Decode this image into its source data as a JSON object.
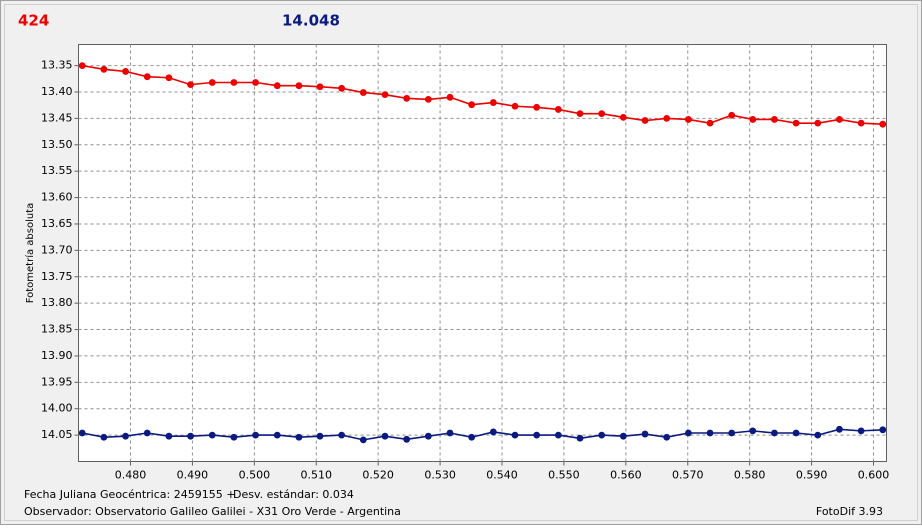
{
  "chart_data": {
    "type": "line",
    "y_label": "Fotometría absoluta",
    "footer": {
      "date_label": "Fecha Juliana Geocéntrica: 2459155 +",
      "std_label": "Desv. estándar: 0.034",
      "observer": "Observador: Observatorio Galileo Galilei - X31 Oro Verde - Argentina",
      "software": "FotoDif 3.93"
    },
    "x": [
      0.4722,
      0.4757,
      0.4792,
      0.4827,
      0.4862,
      0.4897,
      0.4932,
      0.4967,
      0.5002,
      0.5037,
      0.5072,
      0.5106,
      0.5141,
      0.5176,
      0.5211,
      0.5246,
      0.5281,
      0.5316,
      0.5351,
      0.5386,
      0.5421,
      0.5456,
      0.5491,
      0.5526,
      0.5561,
      0.5596,
      0.5631,
      0.5666,
      0.5701,
      0.5736,
      0.5771,
      0.5805,
      0.584,
      0.5875,
      0.591,
      0.5945,
      0.598,
      0.6015
    ],
    "series": [
      {
        "name": "424",
        "color": "#ee0000",
        "values": [
          13.35,
          13.357,
          13.361,
          13.371,
          13.373,
          13.386,
          13.382,
          13.382,
          13.382,
          13.388,
          13.388,
          13.39,
          13.393,
          13.401,
          13.405,
          13.412,
          13.414,
          13.41,
          13.424,
          13.42,
          13.427,
          13.429,
          13.433,
          13.441,
          13.441,
          13.448,
          13.454,
          13.45,
          13.452,
          13.459,
          13.444,
          13.452,
          13.452,
          13.459,
          13.459,
          13.452,
          13.459,
          13.461
        ]
      },
      {
        "name": "14.048",
        "color": "#0a1a80",
        "values": [
          14.046,
          14.054,
          14.052,
          14.046,
          14.052,
          14.052,
          14.05,
          14.054,
          14.05,
          14.05,
          14.054,
          14.052,
          14.05,
          14.059,
          14.052,
          14.058,
          14.052,
          14.046,
          14.054,
          14.044,
          14.05,
          14.05,
          14.05,
          14.056,
          14.05,
          14.052,
          14.048,
          14.054,
          14.046,
          14.046,
          14.046,
          14.042,
          14.046,
          14.046,
          14.05,
          14.039,
          14.042,
          14.04
        ]
      }
    ],
    "xlim": [
      0.4716,
      0.6021
    ],
    "xticks": [
      {
        "value": 0.48,
        "label": "0.480"
      },
      {
        "value": 0.49,
        "label": "0.490"
      },
      {
        "value": 0.5,
        "label": "0.500"
      },
      {
        "value": 0.51,
        "label": "0.510"
      },
      {
        "value": 0.52,
        "label": "0.520"
      },
      {
        "value": 0.53,
        "label": "0.530"
      },
      {
        "value": 0.54,
        "label": "0.540"
      },
      {
        "value": 0.55,
        "label": "0.550"
      },
      {
        "value": 0.56,
        "label": "0.560"
      },
      {
        "value": 0.57,
        "label": "0.570"
      },
      {
        "value": 0.58,
        "label": "0.580"
      },
      {
        "value": 0.59,
        "label": "0.590"
      },
      {
        "value": 0.6,
        "label": "0.600"
      }
    ],
    "ylim": [
      13.31,
      14.1
    ],
    "y_inverted": true,
    "yticks": [
      13.35,
      {
        "value": 13.4,
        "label": "13.40"
      },
      13.45,
      {
        "value": 13.5,
        "label": "13.50"
      },
      13.55,
      {
        "value": 13.6,
        "label": "13.60"
      },
      13.65,
      {
        "value": 13.7,
        "label": "13.70"
      },
      13.75,
      {
        "value": 13.8,
        "label": "13.80"
      },
      13.85,
      {
        "value": 13.9,
        "label": "13.90"
      },
      13.95,
      {
        "value": 14.0,
        "label": "14.00"
      },
      14.05
    ],
    "grid": true
  }
}
